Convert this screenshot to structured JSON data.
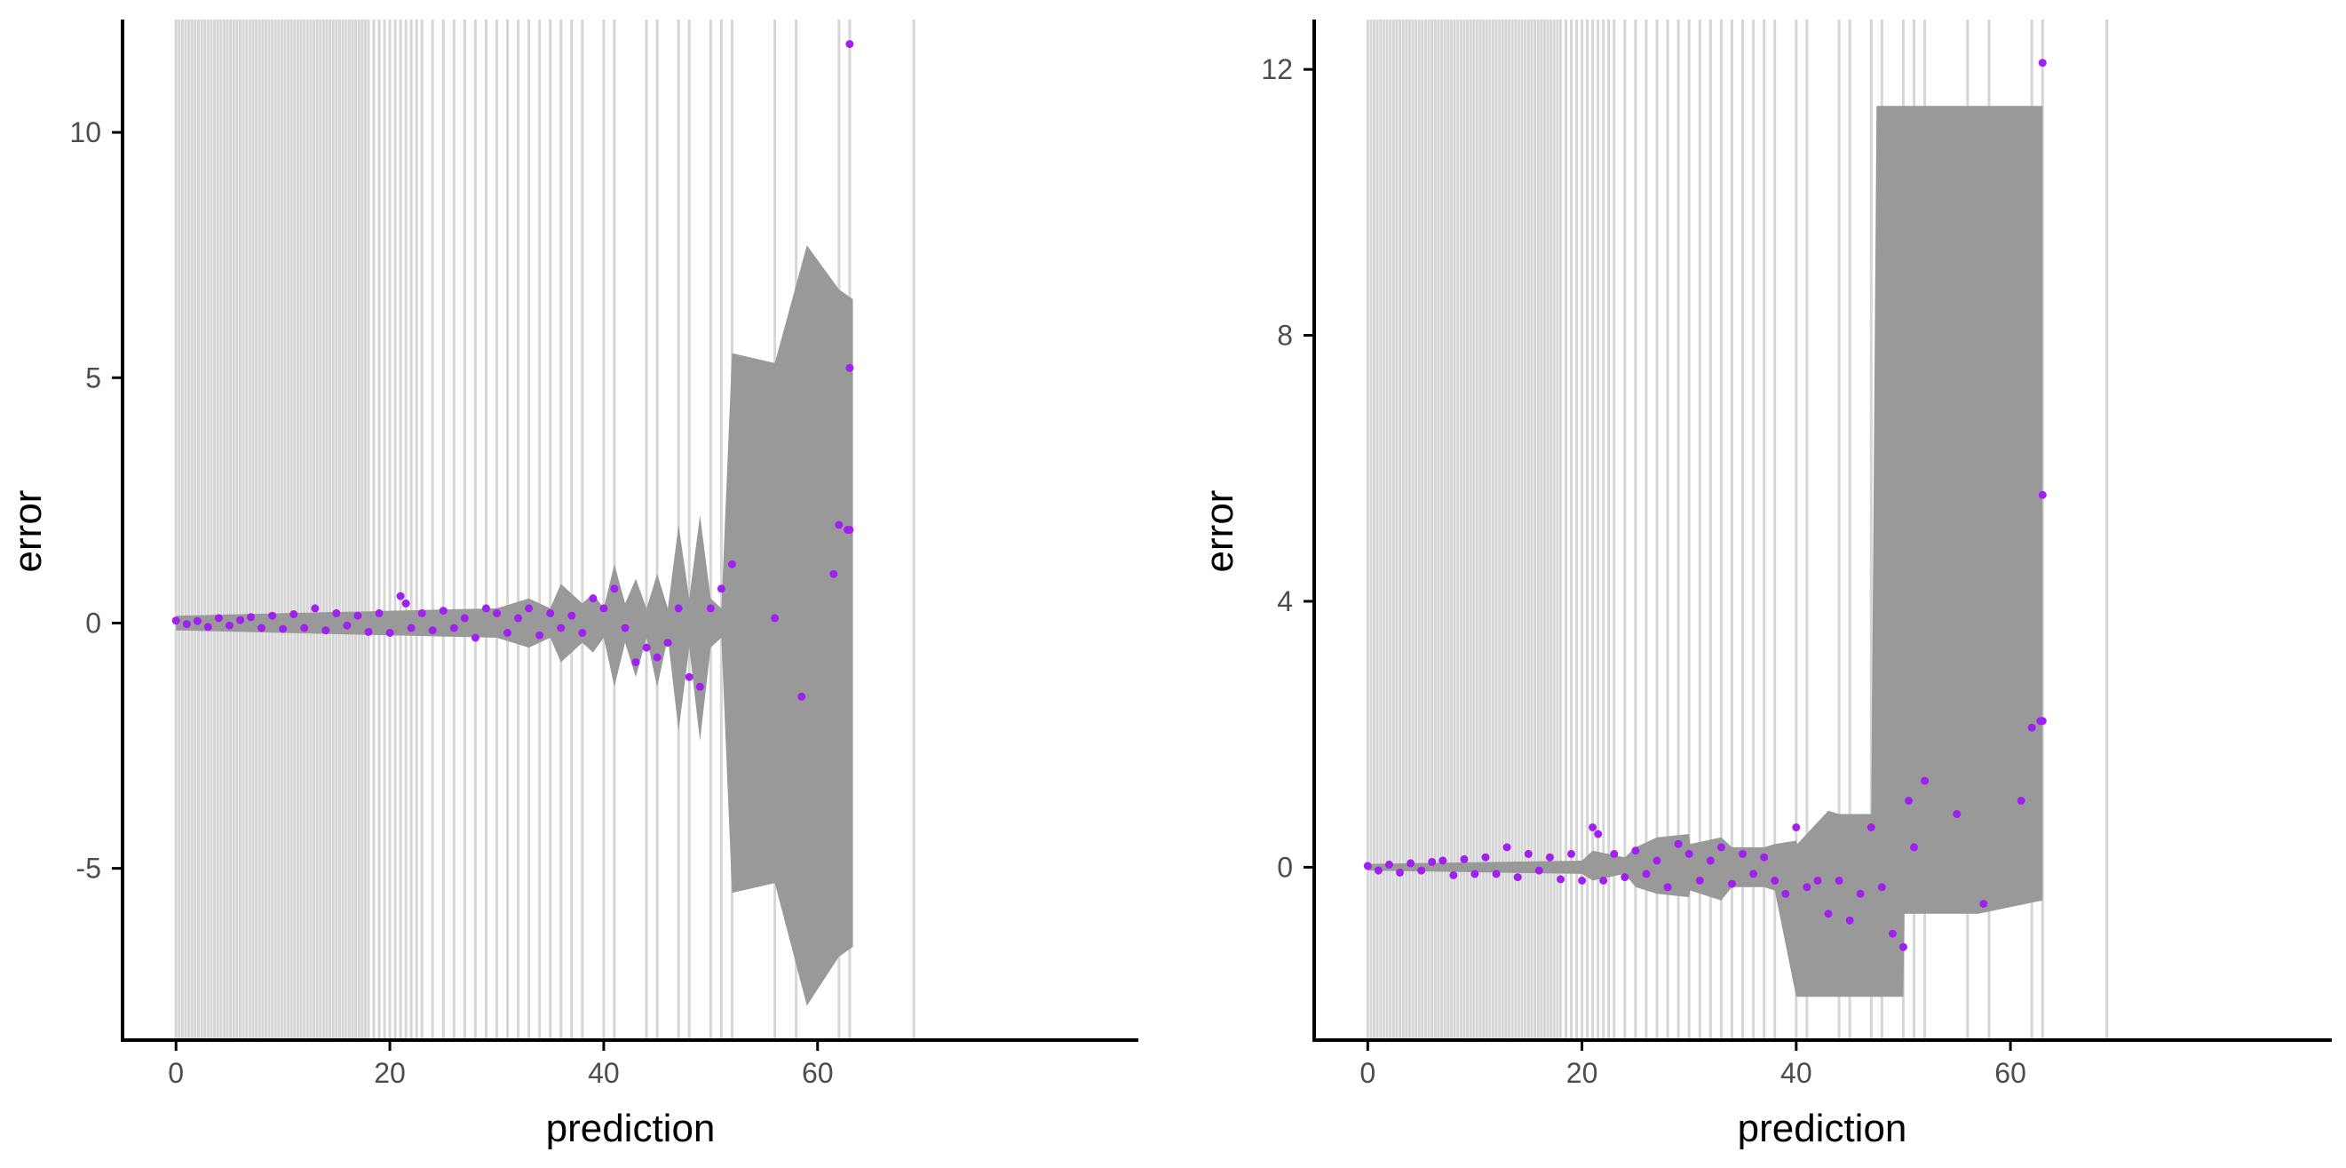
{
  "colors": {
    "background": "#ffffff",
    "axis_line": "#000000",
    "tick_label": "#4d4d4d",
    "rug_line": "#c8c8c8",
    "band": "#999999",
    "points": "#a020f0"
  },
  "chart_data": [
    {
      "type": "scatter",
      "title": "",
      "xlabel": "prediction",
      "ylabel": "error",
      "xlim": [
        -5,
        90
      ],
      "ylim": [
        -8.5,
        12.3
      ],
      "xticks": [
        0,
        20,
        40,
        60
      ],
      "xtick_labels": [
        "0",
        "20",
        "40",
        "60"
      ],
      "yticks": [
        -5,
        0,
        5,
        10
      ],
      "ytick_labels": [
        "-5",
        "0",
        "5",
        "10"
      ],
      "grid": false,
      "legend": "none",
      "band": {
        "x": [
          0,
          10,
          20,
          30,
          33,
          35,
          36,
          38,
          39,
          40,
          41,
          42,
          43,
          44,
          45,
          46,
          47,
          48,
          49,
          50,
          51,
          52,
          56,
          59,
          62,
          63.3
        ],
        "upper": [
          0.15,
          0.2,
          0.25,
          0.3,
          0.5,
          0.3,
          0.8,
          0.4,
          0.6,
          0.3,
          1.2,
          0.4,
          0.9,
          0.3,
          1.0,
          0.3,
          2.0,
          0.5,
          2.2,
          0.5,
          0.3,
          5.5,
          5.3,
          7.7,
          6.8,
          6.6
        ],
        "lower": [
          -0.15,
          -0.2,
          -0.25,
          -0.3,
          -0.5,
          -0.3,
          -0.8,
          -0.4,
          -0.6,
          -0.3,
          -1.3,
          -0.4,
          -1.1,
          -0.3,
          -1.3,
          -0.3,
          -2.2,
          -0.5,
          -2.4,
          -0.5,
          -0.3,
          -5.5,
          -5.3,
          -7.8,
          -6.8,
          -6.6
        ]
      },
      "points": {
        "x": [
          0,
          1,
          2,
          3,
          4,
          5,
          6,
          7,
          8,
          9,
          10,
          11,
          12,
          13,
          14,
          15,
          16,
          17,
          18,
          19,
          20,
          21,
          21.5,
          22,
          23,
          24,
          25,
          26,
          27,
          28,
          29,
          30,
          31,
          32,
          33,
          34,
          35,
          36,
          37,
          38,
          39,
          40,
          41,
          42,
          43,
          44,
          45,
          46,
          47,
          48,
          49,
          50,
          51,
          52,
          56,
          58.5,
          61.5,
          62,
          62.8,
          63,
          63,
          63
        ],
        "y": [
          0.05,
          -0.02,
          0.04,
          -0.08,
          0.1,
          -0.05,
          0.06,
          0.12,
          -0.1,
          0.15,
          -0.12,
          0.18,
          -0.1,
          0.3,
          -0.15,
          0.2,
          -0.05,
          0.15,
          -0.18,
          0.2,
          -0.2,
          0.55,
          0.4,
          -0.1,
          0.2,
          -0.15,
          0.25,
          -0.1,
          0.1,
          -0.3,
          0.3,
          0.2,
          -0.2,
          0.1,
          0.3,
          -0.25,
          0.2,
          -0.1,
          0.15,
          -0.2,
          0.5,
          0.3,
          0.7,
          -0.1,
          -0.8,
          -0.5,
          -0.7,
          -0.4,
          0.3,
          -1.1,
          -1.3,
          0.3,
          0.7,
          1.2,
          0.1,
          -1.5,
          1.0,
          2.0,
          1.9,
          5.2,
          11.8,
          1.9
        ]
      },
      "rug_x": [
        0,
        0.3,
        0.6,
        0.9,
        1.2,
        1.5,
        1.8,
        2.1,
        2.4,
        2.7,
        3,
        3.3,
        3.6,
        3.9,
        4.2,
        4.5,
        4.8,
        5.1,
        5.4,
        5.7,
        6,
        6.3,
        6.6,
        6.9,
        7.2,
        7.5,
        7.8,
        8.1,
        8.4,
        8.7,
        9,
        9.3,
        9.6,
        9.9,
        10.2,
        10.5,
        10.8,
        11.1,
        11.4,
        11.7,
        12,
        12.3,
        12.6,
        12.9,
        13.2,
        13.5,
        13.8,
        14.1,
        14.4,
        14.7,
        15,
        15.3,
        15.6,
        15.9,
        16.2,
        16.5,
        16.8,
        17.1,
        17.4,
        17.7,
        18,
        18.5,
        19,
        19.5,
        20,
        20.5,
        21,
        21.5,
        22,
        22.5,
        23,
        24,
        25,
        26,
        27,
        28,
        29,
        30,
        31,
        32,
        33,
        34,
        35,
        36,
        37,
        38,
        40,
        41,
        44,
        45,
        47,
        48,
        50,
        51,
        52,
        56,
        58,
        62,
        63,
        69
      ]
    },
    {
      "type": "scatter",
      "title": "",
      "xlabel": "prediction",
      "ylabel": "error",
      "xlim": [
        -5,
        90
      ],
      "ylim": [
        -2.6,
        12.75
      ],
      "xticks": [
        0,
        20,
        40,
        60
      ],
      "xtick_labels": [
        "0",
        "20",
        "40",
        "60"
      ],
      "yticks": [
        0,
        4,
        8,
        12
      ],
      "ytick_labels": [
        "0",
        "4",
        "8",
        "12"
      ],
      "grid": false,
      "legend": "none",
      "band": {
        "x": [
          0,
          20,
          21,
          24,
          25,
          27,
          30,
          30.1,
          33,
          34,
          37,
          38,
          40,
          40.1,
          43,
          44,
          47,
          47.5,
          50,
          50.1,
          57,
          60,
          63
        ],
        "upper": [
          0.05,
          0.1,
          0.25,
          0.15,
          0.3,
          0.45,
          0.5,
          0.35,
          0.45,
          0.3,
          0.3,
          0.35,
          0.4,
          0.35,
          0.85,
          0.8,
          0.8,
          11.45,
          11.45,
          11.45,
          11.45,
          11.45,
          11.45
        ],
        "lower": [
          -0.05,
          -0.1,
          -0.2,
          -0.1,
          -0.3,
          -0.4,
          -0.45,
          -0.35,
          -0.5,
          -0.3,
          -0.3,
          -0.35,
          -1.95,
          -1.95,
          -1.95,
          -1.95,
          -1.95,
          -1.95,
          -1.95,
          -0.7,
          -0.7,
          -0.6,
          -0.5
        ]
      },
      "points": {
        "x": [
          0,
          1,
          2,
          3,
          4,
          5,
          6,
          7,
          8,
          9,
          10,
          11,
          12,
          13,
          14,
          15,
          16,
          17,
          18,
          19,
          20,
          21,
          21.5,
          22,
          23,
          24,
          25,
          26,
          27,
          28,
          29,
          30,
          31,
          32,
          33,
          34,
          35,
          36,
          37,
          38,
          39,
          40,
          41,
          42,
          43,
          44,
          45,
          46,
          47,
          48,
          49,
          50,
          50.5,
          51,
          52,
          55,
          57.5,
          61,
          62,
          62.8,
          63,
          63,
          63
        ],
        "y": [
          0.02,
          -0.05,
          0.04,
          -0.08,
          0.06,
          -0.05,
          0.08,
          0.1,
          -0.12,
          0.12,
          -0.1,
          0.15,
          -0.1,
          0.3,
          -0.15,
          0.2,
          -0.05,
          0.15,
          -0.18,
          0.2,
          -0.2,
          0.6,
          0.5,
          -0.2,
          0.2,
          -0.15,
          0.25,
          -0.1,
          0.1,
          -0.3,
          0.35,
          0.2,
          -0.2,
          0.1,
          0.3,
          -0.25,
          0.2,
          -0.1,
          0.15,
          -0.2,
          -0.4,
          0.6,
          -0.3,
          -0.2,
          -0.7,
          -0.2,
          -0.8,
          -0.4,
          0.6,
          -0.3,
          -1.0,
          -1.2,
          1.0,
          0.3,
          1.3,
          0.8,
          -0.55,
          1.0,
          2.1,
          2.2,
          5.6,
          12.1,
          2.2
        ]
      },
      "rug_x": [
        0,
        0.3,
        0.6,
        0.9,
        1.2,
        1.5,
        1.8,
        2.1,
        2.4,
        2.7,
        3,
        3.3,
        3.6,
        3.9,
        4.2,
        4.5,
        4.8,
        5.1,
        5.4,
        5.7,
        6,
        6.3,
        6.6,
        6.9,
        7.2,
        7.5,
        7.8,
        8.1,
        8.4,
        8.7,
        9,
        9.3,
        9.6,
        9.9,
        10.2,
        10.5,
        10.8,
        11.1,
        11.4,
        11.7,
        12,
        12.3,
        12.6,
        12.9,
        13.2,
        13.5,
        13.8,
        14.1,
        14.4,
        14.7,
        15,
        15.3,
        15.6,
        15.9,
        16.2,
        16.5,
        16.8,
        17.1,
        17.4,
        17.7,
        18,
        18.5,
        19,
        19.5,
        20,
        20.5,
        21,
        21.5,
        22,
        22.5,
        23,
        24,
        25,
        26,
        27,
        28,
        29,
        30,
        31,
        32,
        33,
        34,
        35,
        36,
        37,
        38,
        40,
        41,
        44,
        45,
        47,
        48,
        50,
        51,
        52,
        56,
        58,
        62,
        63,
        69
      ]
    }
  ]
}
